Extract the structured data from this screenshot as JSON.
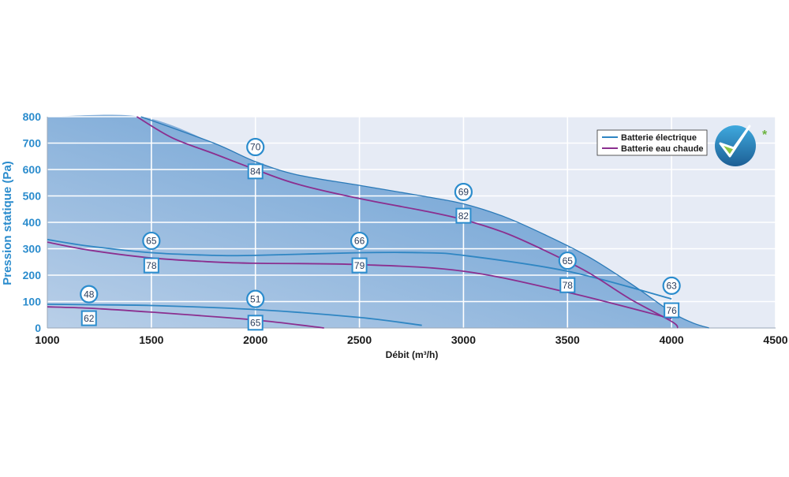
{
  "chart_data": {
    "type": "line",
    "xlabel": "Débit (m³/h)",
    "ylabel": "Pression statique (Pa)",
    "xlim": [
      1000,
      4500
    ],
    "ylim": [
      0,
      800
    ],
    "x_ticks": [
      "1000",
      "1500",
      "2000",
      "2500",
      "3000",
      "3500",
      "4000",
      "4500"
    ],
    "y_ticks": [
      "0",
      "100",
      "200",
      "300",
      "400",
      "500",
      "600",
      "700",
      "800"
    ],
    "grid": true,
    "legend_position": "top-right",
    "operating_area": {
      "x": [
        1000,
        1450,
        1800,
        2000,
        2200,
        2500,
        2800,
        3000,
        3200,
        3400,
        3600,
        3800,
        4000,
        4100,
        4180
      ],
      "y": [
        800,
        800,
        700,
        630,
        580,
        540,
        500,
        470,
        420,
        350,
        270,
        170,
        60,
        20,
        0
      ]
    },
    "series": [
      {
        "name": "Batterie électrique",
        "color": "#2f86c3",
        "curves": [
          {
            "x": [
              1000,
              1200,
              1500,
              1800,
              2000,
              2500,
              2800,
              3000,
              3500,
              4000
            ],
            "y": [
              335,
              310,
              285,
              275,
              275,
              285,
              285,
              275,
              215,
              110
            ]
          },
          {
            "x": [
              1000,
              1200,
              1500,
              2000,
              2500,
              2800
            ],
            "y": [
              90,
              88,
              85,
              70,
              40,
              10
            ]
          }
        ]
      },
      {
        "name": "Batterie eau chaude",
        "color": "#8b2f8f",
        "curves": [
          {
            "x": [
              1430,
              1600,
              1800,
              2000,
              2200,
              2500,
              2800,
              3000,
              3200,
              3400,
              3600,
              3800,
              4000,
              4030
            ],
            "y": [
              800,
              720,
              660,
              600,
              545,
              490,
              445,
              410,
              360,
              290,
              210,
              110,
              25,
              0
            ]
          },
          {
            "x": [
              1000,
              1200,
              1500,
              1800,
              2000,
              2500,
              3000,
              3500,
              4000
            ],
            "y": [
              325,
              295,
              265,
              250,
              245,
              240,
              215,
              135,
              35
            ]
          },
          {
            "x": [
              1000,
              1200,
              1500,
              2000,
              2330
            ],
            "y": [
              80,
              75,
              60,
              30,
              0
            ]
          }
        ]
      }
    ],
    "circle_labels": [
      {
        "x": 2000,
        "y": 685,
        "text": "70"
      },
      {
        "x": 3000,
        "y": 515,
        "text": "69"
      },
      {
        "x": 1500,
        "y": 330,
        "text": "65"
      },
      {
        "x": 2500,
        "y": 330,
        "text": "66"
      },
      {
        "x": 3500,
        "y": 255,
        "text": "65"
      },
      {
        "x": 1200,
        "y": 128,
        "text": "48"
      },
      {
        "x": 2000,
        "y": 110,
        "text": "51"
      },
      {
        "x": 4000,
        "y": 160,
        "text": "63"
      }
    ],
    "square_labels": [
      {
        "x": 2000,
        "y": 593,
        "text": "84"
      },
      {
        "x": 3000,
        "y": 425,
        "text": "82"
      },
      {
        "x": 1500,
        "y": 237,
        "text": "78"
      },
      {
        "x": 2500,
        "y": 237,
        "text": "79"
      },
      {
        "x": 3500,
        "y": 162,
        "text": "78"
      },
      {
        "x": 1200,
        "y": 37,
        "text": "62"
      },
      {
        "x": 2000,
        "y": 20,
        "text": "65"
      },
      {
        "x": 4000,
        "y": 67,
        "text": "76"
      }
    ],
    "colors": {
      "plot_background": "#e6ebf5",
      "area_fill_light": "#b9cfe8",
      "area_fill_dark": "#5b96cf",
      "area_border": "#2b7ab8",
      "tick_label": "#2b8ccd",
      "grid": "#ffffff",
      "marker": "#2b8ccd"
    }
  },
  "badge": {
    "icon": "check-badge-icon",
    "mark": "*"
  }
}
